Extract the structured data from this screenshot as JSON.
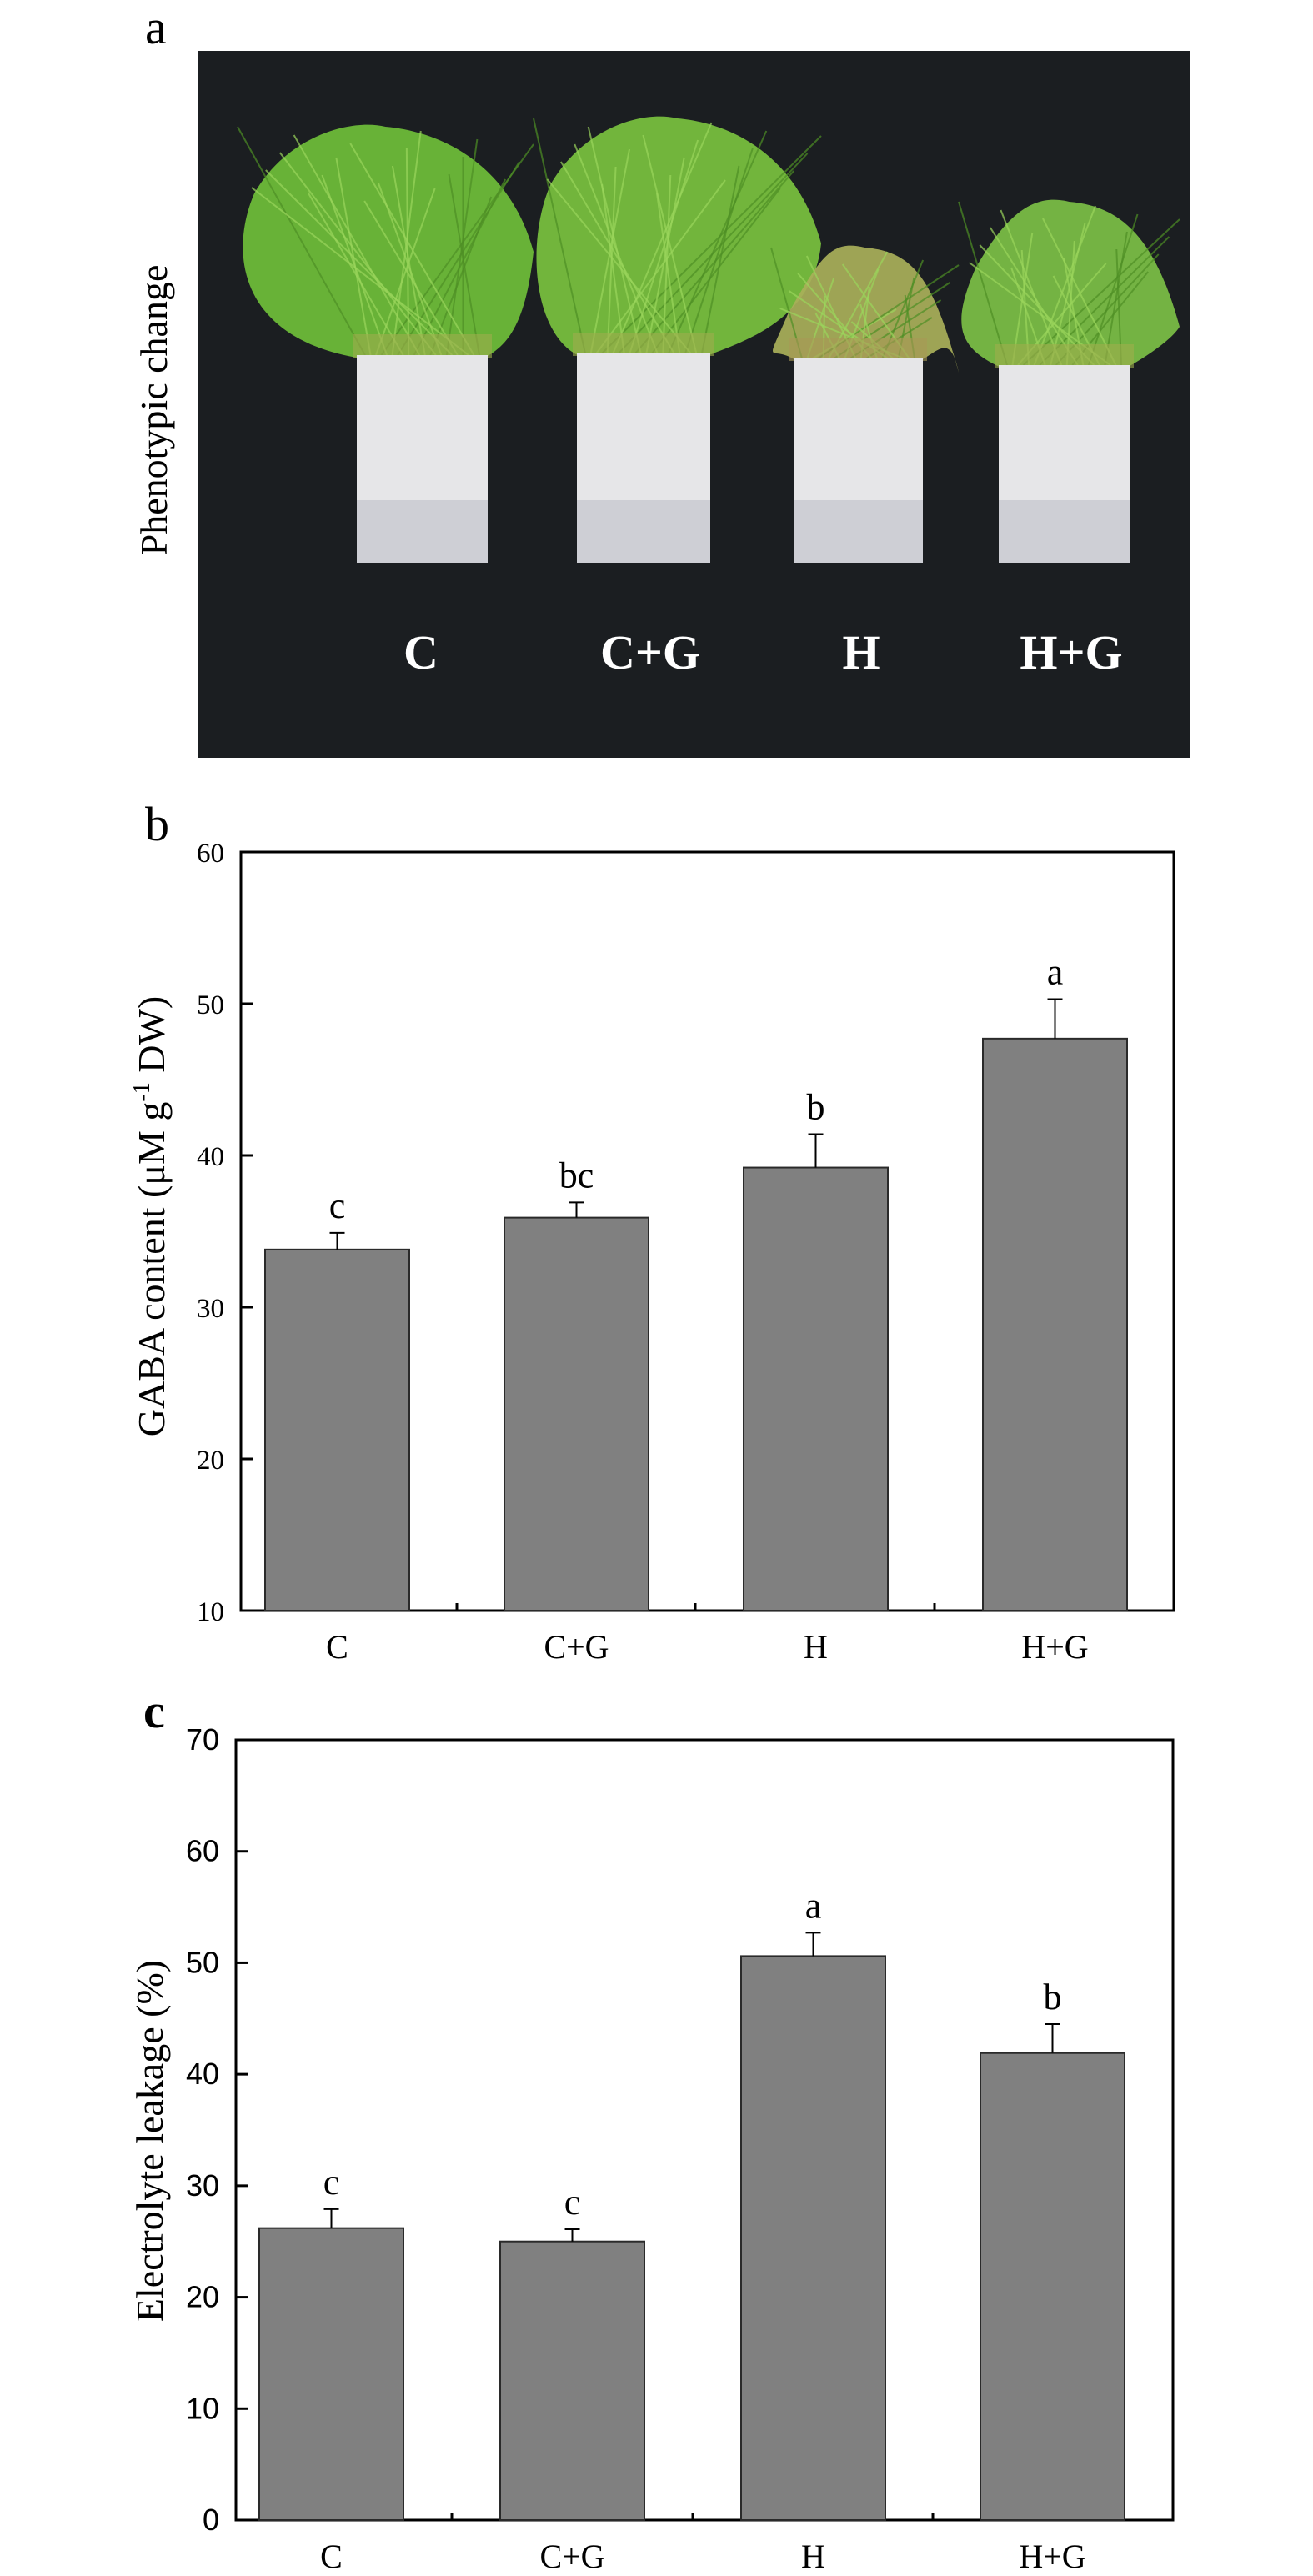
{
  "figure": {
    "panels": {
      "a": {
        "letter": "a",
        "side_label": "Phenotypic change",
        "photo_background": "#1b1e21",
        "treatments": [
          "C",
          "C+G",
          "H",
          "H+G"
        ],
        "grass_colors": [
          "#6fbf3a",
          "#79c23f",
          "#a9b05a",
          "#7cc046"
        ]
      },
      "b": {
        "letter": "b"
      },
      "c": {
        "letter": "c"
      }
    },
    "bar_fill": "#808080",
    "bar_stroke": "#2a2a2a"
  },
  "chart_data": [
    {
      "panel": "b",
      "type": "bar",
      "title": "",
      "xlabel": "",
      "ylabel": "GABA content (μM g-1 DW)",
      "ylabel_parts": {
        "main": "GABA content (μM g",
        "sup": "-1",
        "tail": " DW)"
      },
      "categories": [
        "C",
        "C+G",
        "H",
        "H+G"
      ],
      "values": [
        33.8,
        35.9,
        39.2,
        47.7
      ],
      "error_upper": [
        1.1,
        1.0,
        2.2,
        2.6
      ],
      "significance_letters": [
        "c",
        "bc",
        "b",
        "a"
      ],
      "ylim": [
        10,
        60
      ],
      "yticks": [
        10,
        20,
        30,
        40,
        50,
        60
      ],
      "grid": false,
      "legend": null
    },
    {
      "panel": "c",
      "type": "bar",
      "title": "",
      "xlabel": "",
      "ylabel": "Electrolyte leakage (%)",
      "categories": [
        "C",
        "C+G",
        "H",
        "H+G"
      ],
      "values": [
        26.2,
        25.0,
        50.6,
        41.9
      ],
      "error_upper": [
        1.7,
        1.1,
        2.1,
        2.6
      ],
      "significance_letters": [
        "c",
        "c",
        "a",
        "b"
      ],
      "ylim": [
        0,
        70
      ],
      "yticks": [
        0,
        10,
        20,
        30,
        40,
        50,
        60,
        70
      ],
      "grid": false,
      "legend": null
    }
  ]
}
